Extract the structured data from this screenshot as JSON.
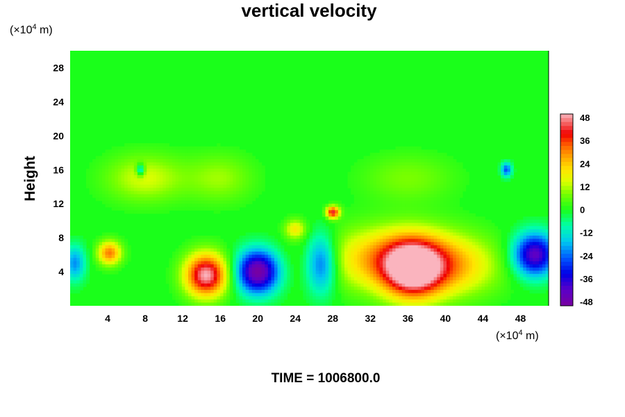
{
  "chart_data": {
    "type": "heatmap",
    "title": "vertical velocity",
    "ylabel": "Height",
    "y_unit": {
      "prefix": "(×10",
      "exp": "4",
      "suffix": " m)"
    },
    "x_unit": {
      "prefix": "(×10",
      "exp": "4",
      "suffix": " m)"
    },
    "x_ticks": [
      "4",
      "8",
      "12",
      "16",
      "20",
      "24",
      "28",
      "32",
      "36",
      "40",
      "44",
      "48"
    ],
    "y_ticks": [
      "4",
      "8",
      "12",
      "16",
      "20",
      "24",
      "28"
    ],
    "xlim": [
      0,
      51
    ],
    "ylim": [
      0,
      30
    ],
    "colorbar": {
      "ticks": [
        "48",
        "36",
        "24",
        "12",
        "0",
        "-12",
        "-24",
        "-36",
        "-48"
      ],
      "range": [
        -48,
        48
      ]
    },
    "features": [
      {
        "x": 14.5,
        "y": 3.6,
        "value": 48,
        "sx": 1.6,
        "sy": 1.8
      },
      {
        "x": 36.5,
        "y": 4.2,
        "value": 42,
        "sx": 2.2,
        "sy": 2.4
      },
      {
        "x": 34.5,
        "y": 5.5,
        "value": 28,
        "sx": 5.0,
        "sy": 2.6
      },
      {
        "x": 41.0,
        "y": 4.5,
        "value": 16,
        "sx": 3.5,
        "sy": 2.5
      },
      {
        "x": 20.0,
        "y": 4.0,
        "value": -48,
        "sx": 1.6,
        "sy": 1.8
      },
      {
        "x": 26.8,
        "y": 5.0,
        "value": -28,
        "sx": 1.2,
        "sy": 2.5
      },
      {
        "x": 49.5,
        "y": 6.0,
        "value": -42,
        "sx": 1.6,
        "sy": 1.8
      },
      {
        "x": 28.0,
        "y": 11.0,
        "value": 40,
        "sx": 0.5,
        "sy": 0.5
      },
      {
        "x": 4.2,
        "y": 6.2,
        "value": 30,
        "sx": 0.9,
        "sy": 1.0
      },
      {
        "x": 0.5,
        "y": 5.0,
        "value": -20,
        "sx": 0.8,
        "sy": 1.5
      },
      {
        "x": 24.0,
        "y": 9.0,
        "value": 18,
        "sx": 0.8,
        "sy": 0.8
      },
      {
        "x": 8.0,
        "y": 15.0,
        "value": 14,
        "sx": 3.0,
        "sy": 2.0
      },
      {
        "x": 16.0,
        "y": 15.0,
        "value": 10,
        "sx": 2.5,
        "sy": 2.0
      },
      {
        "x": 36.0,
        "y": 15.0,
        "value": 8,
        "sx": 3.5,
        "sy": 2.0
      },
      {
        "x": 46.5,
        "y": 16.0,
        "value": -25,
        "sx": 0.4,
        "sy": 0.6
      },
      {
        "x": 7.5,
        "y": 16.0,
        "value": -22,
        "sx": 0.3,
        "sy": 0.5
      }
    ],
    "time_label": "TIME = 1006800.0"
  }
}
